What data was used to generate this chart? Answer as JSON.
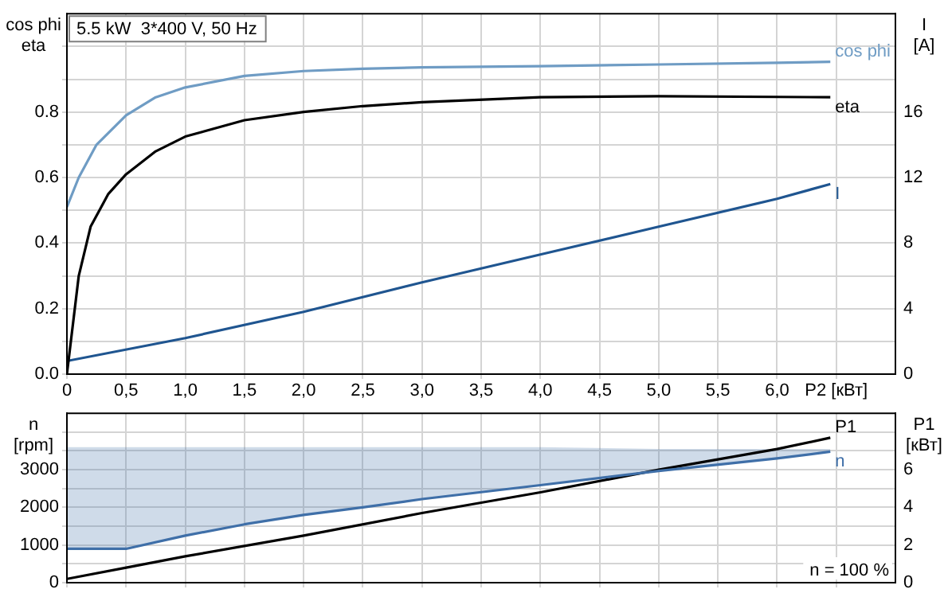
{
  "chart_data": [
    {
      "type": "line",
      "title": "5.5 kW  3*400 V, 50 Hz",
      "ylabel": "cos phi\neta",
      "y2label": "I\n[A]",
      "grid": true,
      "legend": false,
      "marker": "none",
      "line_style": "solid",
      "xlim": [
        0,
        7
      ],
      "xticks": [
        0,
        {
          "value": 0.5,
          "label": "0,5"
        },
        {
          "value": 1,
          "label": "1,0"
        },
        {
          "value": 1.5,
          "label": "1,5"
        },
        {
          "value": 2,
          "label": "2,0"
        },
        {
          "value": 2.5,
          "label": "2,5"
        },
        {
          "value": 3,
          "label": "3,0"
        },
        {
          "value": 3.5,
          "label": "3,5"
        },
        {
          "value": 4,
          "label": "4,0"
        },
        {
          "value": 4.5,
          "label": "4,5"
        },
        {
          "value": 5,
          "label": "5,0"
        },
        {
          "value": 5.5,
          "label": "5,5"
        },
        {
          "value": 6,
          "label": "6,0"
        },
        {
          "value": 6.5,
          "label": "P2 [кВт]"
        }
      ],
      "ylim": [
        0,
        1.1
      ],
      "yticks": [
        {
          "value": 0,
          "label": "0.0"
        },
        {
          "value": 0.1,
          "label": null
        },
        0.2,
        {
          "value": 0.3,
          "label": null
        },
        0.4,
        {
          "value": 0.5,
          "label": null
        },
        0.6,
        {
          "value": 0.7,
          "label": null
        },
        0.8,
        {
          "value": 0.9,
          "label": null
        },
        {
          "value": 1.0,
          "label": null
        }
      ],
      "y2lim": [
        0,
        22
      ],
      "y2ticks": [
        0,
        4,
        8,
        12,
        16
      ],
      "series": [
        {
          "name": "cos phi",
          "color": "#6f9cc4",
          "x": [
            0,
            0.1,
            0.25,
            0.5,
            0.75,
            1,
            1.5,
            2,
            2.5,
            3,
            4,
            5,
            6,
            6.45
          ],
          "values": [
            0.51,
            0.6,
            0.7,
            0.79,
            0.845,
            0.875,
            0.91,
            0.925,
            0.932,
            0.936,
            0.94,
            0.945,
            0.95,
            0.953
          ]
        },
        {
          "name": "eta",
          "color": "#000000",
          "x": [
            0,
            0.1,
            0.2,
            0.35,
            0.5,
            0.75,
            1,
            1.5,
            2,
            2.5,
            3,
            4,
            5,
            6,
            6.45
          ],
          "values": [
            0,
            0.3,
            0.45,
            0.55,
            0.61,
            0.68,
            0.725,
            0.775,
            0.8,
            0.818,
            0.83,
            0.845,
            0.848,
            0.846,
            0.845
          ]
        },
        {
          "name": "I",
          "color": "#1f5590",
          "axis": "y2",
          "x": [
            0,
            1,
            2,
            3,
            4,
            5,
            6,
            6.45
          ],
          "values": [
            0.8,
            2.2,
            3.8,
            5.6,
            7.3,
            9.0,
            10.7,
            11.6
          ]
        }
      ]
    },
    {
      "type": "line",
      "ylabel": "n\n[rpm]",
      "y2label": "P1\n[кВт]",
      "grid": true,
      "legend": false,
      "marker": "none",
      "line_style": "solid",
      "tick_labels": "y",
      "annotations": [
        "n = 100 %"
      ],
      "xlim": [
        0,
        7
      ],
      "xticks": [
        {
          "value": 0,
          "label": null
        },
        {
          "value": 0.5,
          "label": null
        },
        {
          "value": 1,
          "label": null
        },
        {
          "value": 1.5,
          "label": null
        },
        {
          "value": 2,
          "label": null
        },
        {
          "value": 2.5,
          "label": null
        },
        {
          "value": 3,
          "label": null
        },
        {
          "value": 3.5,
          "label": null
        },
        {
          "value": 4,
          "label": null
        },
        {
          "value": 4.5,
          "label": null
        },
        {
          "value": 5,
          "label": null
        },
        {
          "value": 5.5,
          "label": null
        },
        {
          "value": 6,
          "label": null
        },
        {
          "value": 6.5,
          "label": null
        }
      ],
      "ylim": [
        0,
        4500
      ],
      "yticks": [
        0,
        {
          "value": 500,
          "label": null
        },
        1000,
        {
          "value": 1500,
          "label": null
        },
        2000,
        {
          "value": 2500,
          "label": null
        },
        3000,
        {
          "value": 3500,
          "label": null
        },
        {
          "value": 4000,
          "label": null
        }
      ],
      "y2lim": [
        0,
        9
      ],
      "y2ticks": [
        0,
        2,
        4,
        6
      ],
      "series": [
        {
          "name": "n",
          "color": "#3f6fa8",
          "x": [
            0,
            0.5,
            1,
            1.5,
            2,
            2.5,
            3,
            4,
            5,
            6,
            6.45
          ],
          "values": [
            900,
            900,
            1250,
            1550,
            1800,
            2000,
            2220,
            2590,
            2970,
            3300,
            3480
          ],
          "lower": [
            900,
            900,
            1250,
            1550,
            1800,
            2000,
            2220,
            2590,
            2970,
            3300,
            3480
          ],
          "upper": [
            3600,
            3600,
            3600,
            3600,
            3600,
            3600,
            3600,
            3600,
            3550,
            3550,
            3550
          ]
        },
        {
          "name": "P1",
          "color": "#000000",
          "axis": "y2",
          "x": [
            0,
            0.5,
            1,
            2,
            3,
            4,
            5,
            6,
            6.45
          ],
          "values": [
            0.2,
            0.8,
            1.4,
            2.5,
            3.7,
            4.8,
            6.0,
            7.1,
            7.7
          ]
        }
      ]
    }
  ]
}
